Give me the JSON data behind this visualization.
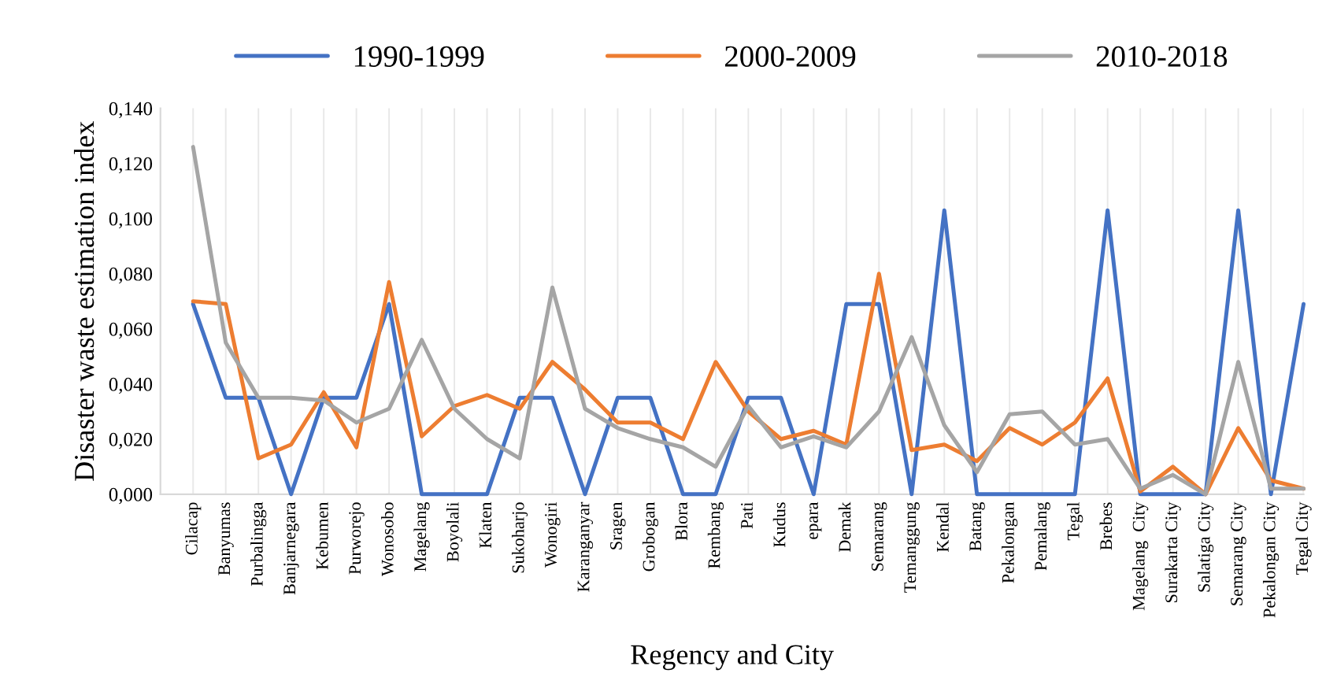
{
  "chart_data": {
    "type": "line",
    "xlabel": "Regency and City",
    "ylabel": "Disaster waste estimation index",
    "categories": [
      "Cilacap",
      "Banyumas",
      "Purbalingga",
      "Banjarnegara",
      "Kebumen",
      "Purworejo",
      "Wonosobo",
      "Magelang",
      "Boyolali",
      "Klaten",
      "Sukoharjo",
      "Wonogiri",
      "Karanganyar",
      "Sragen",
      "Grobogan",
      "Blora",
      "Rembang",
      "Pati",
      "Kudus",
      "epara",
      "Demak",
      "Semarang",
      "Temanggung",
      "Kendal",
      "Batang",
      "Pekalongan",
      "Pemalang",
      "Tegal",
      "Brebes",
      "Magelang  City",
      "Surakarta City",
      "Salatiga City",
      "Semarang City",
      "Pekalongan City",
      "Tegal City"
    ],
    "series": [
      {
        "name": "1990-1999",
        "color": "#4472c4",
        "values": [
          0.069,
          0.035,
          0.035,
          0,
          0.035,
          0.035,
          0.069,
          0,
          0,
          0,
          0.035,
          0.035,
          0,
          0.035,
          0.035,
          0,
          0,
          0.035,
          0.035,
          0,
          0.069,
          0.069,
          0,
          0.103,
          0,
          0,
          0,
          0,
          0.103,
          0,
          0,
          0,
          0.103,
          0,
          0.069
        ]
      },
      {
        "name": "2000-2009",
        "color": "#ed7d31",
        "values": [
          0.07,
          0.069,
          0.013,
          0.018,
          0.037,
          0.017,
          0.077,
          0.021,
          0.032,
          0.036,
          0.031,
          0.048,
          0.038,
          0.026,
          0.026,
          0.02,
          0.048,
          0.03,
          0.02,
          0.023,
          0.018,
          0.08,
          0.016,
          0.018,
          0.012,
          0.024,
          0.018,
          0.026,
          0.042,
          0.001,
          0.01,
          0.0,
          0.024,
          0.005,
          0.002
        ]
      },
      {
        "name": "2010-2018",
        "color": "#a5a5a5",
        "values": [
          0.126,
          0.055,
          0.035,
          0.035,
          0.034,
          0.026,
          0.031,
          0.056,
          0.031,
          0.02,
          0.013,
          0.075,
          0.031,
          0.024,
          0.02,
          0.017,
          0.01,
          0.032,
          0.017,
          0.021,
          0.017,
          0.03,
          0.057,
          0.025,
          0.008,
          0.029,
          0.03,
          0.018,
          0.02,
          0.002,
          0.007,
          0.0,
          0.048,
          0.002,
          0.002
        ]
      }
    ],
    "ylim": [
      0,
      0.14
    ],
    "yticks": [
      {
        "value": 0,
        "label": "0,000"
      },
      {
        "value": 0.02,
        "label": "0,020"
      },
      {
        "value": 0.04,
        "label": "0,040"
      },
      {
        "value": 0.06,
        "label": "0,060"
      },
      {
        "value": 0.08,
        "label": "0,080"
      },
      {
        "value": 0.1,
        "label": "0,100"
      },
      {
        "value": 0.12,
        "label": "0,120"
      },
      {
        "value": 0.14,
        "label": "0,140"
      }
    ],
    "grid": "x",
    "legend": "top",
    "marker": "none",
    "line_style": "solid"
  }
}
